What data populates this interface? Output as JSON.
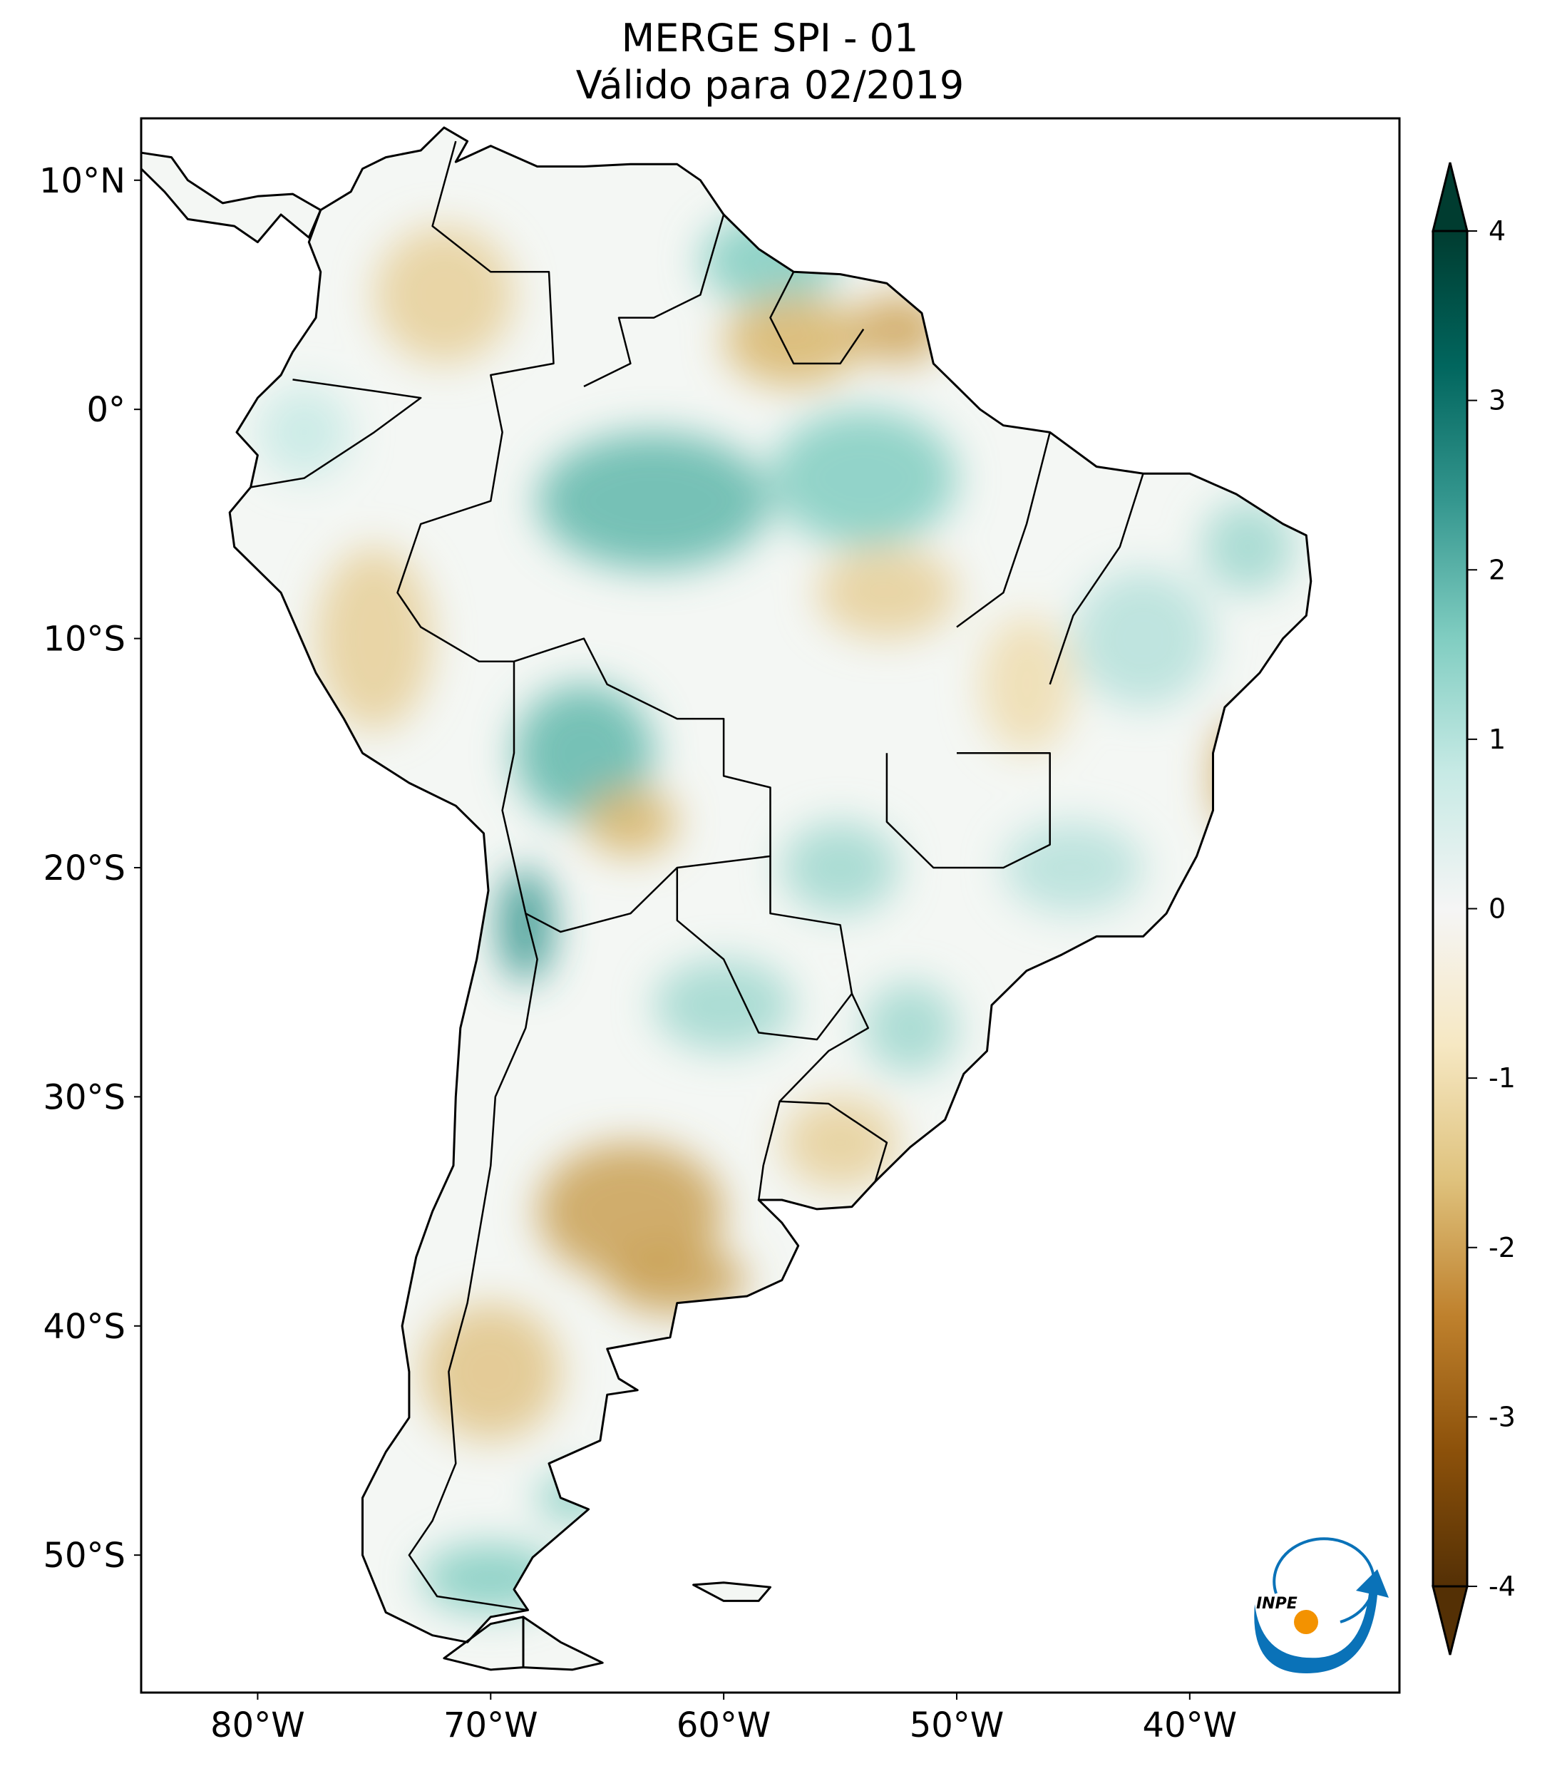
{
  "title": {
    "line1": "MERGE   SPI - 01",
    "line2": "Válido para 02/2019"
  },
  "map": {
    "extent_lon": [
      -85,
      -31
    ],
    "extent_lat": [
      -56,
      12.7
    ],
    "lon_ticks": [
      {
        "value": -80,
        "label": "80°W"
      },
      {
        "value": -70,
        "label": "70°W"
      },
      {
        "value": -60,
        "label": "60°W"
      },
      {
        "value": -50,
        "label": "50°W"
      },
      {
        "value": -40,
        "label": "40°W"
      }
    ],
    "lat_ticks": [
      {
        "value": 10,
        "label": "10°N"
      },
      {
        "value": 0,
        "label": "0°"
      },
      {
        "value": -10,
        "label": "10°S"
      },
      {
        "value": -20,
        "label": "20°S"
      },
      {
        "value": -30,
        "label": "30°S"
      },
      {
        "value": -40,
        "label": "40°S"
      },
      {
        "value": -50,
        "label": "50°S"
      }
    ]
  },
  "colorbar": {
    "min": -4,
    "max": 4,
    "ticks": [
      {
        "value": 4,
        "label": "4"
      },
      {
        "value": 3,
        "label": "3"
      },
      {
        "value": 2,
        "label": "2"
      },
      {
        "value": 1,
        "label": "1"
      },
      {
        "value": 0,
        "label": "0"
      },
      {
        "value": -1,
        "label": "-1"
      },
      {
        "value": -2,
        "label": "-2"
      },
      {
        "value": -3,
        "label": "-3"
      },
      {
        "value": -4,
        "label": "-4"
      }
    ],
    "colors": [
      "#543005",
      "#8c510a",
      "#bf812d",
      "#dfc27d",
      "#f6e8c3",
      "#f5f5f5",
      "#c7eae5",
      "#80cdc1",
      "#35978f",
      "#01665e",
      "#003c30"
    ]
  },
  "logo": {
    "text": "INPE",
    "blue": "#0a72b8",
    "orange": "#f39200"
  }
}
